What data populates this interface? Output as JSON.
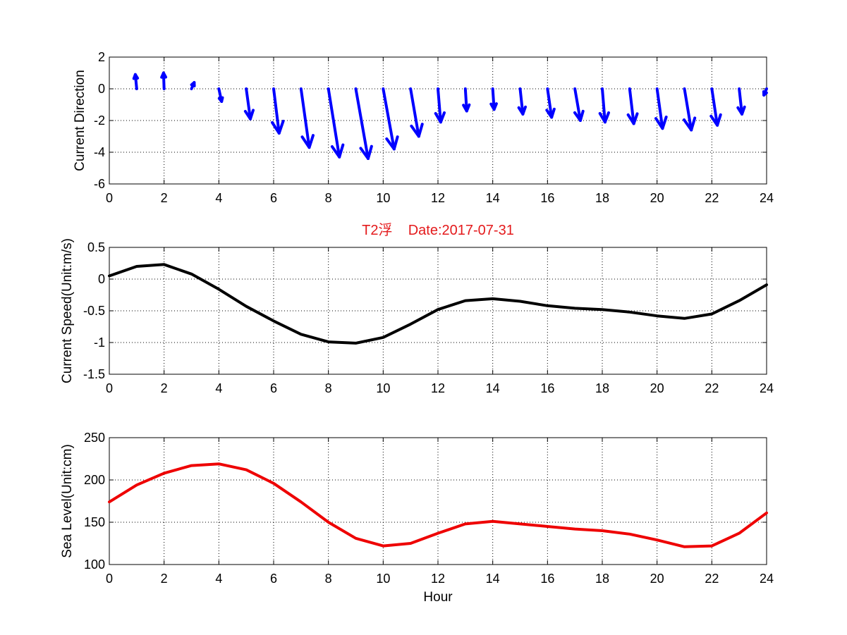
{
  "chart_data": [
    {
      "type": "quiver",
      "ylabel": "Current Direction",
      "xlim": [
        0,
        24
      ],
      "ylim": [
        -6,
        2
      ],
      "xticks": [
        0,
        2,
        4,
        6,
        8,
        10,
        12,
        14,
        16,
        18,
        20,
        22,
        24
      ],
      "yticks": [
        -6,
        -4,
        -2,
        0,
        2
      ],
      "grid": true,
      "color": "#0000ff",
      "x": [
        1,
        2,
        3,
        4,
        5,
        6,
        7,
        8,
        9,
        10,
        11,
        12,
        13,
        14,
        15,
        16,
        17,
        18,
        19,
        20,
        21,
        22,
        23,
        24
      ],
      "u": [
        -0.05,
        -0.02,
        0.1,
        0.1,
        0.15,
        0.2,
        0.3,
        0.4,
        0.45,
        0.4,
        0.3,
        0.1,
        0.05,
        0.05,
        0.1,
        0.15,
        0.2,
        0.1,
        0.15,
        0.2,
        0.25,
        0.2,
        0.1,
        -0.1
      ],
      "v": [
        0.9,
        1.0,
        0.4,
        -0.8,
        -1.9,
        -2.8,
        -3.7,
        -4.3,
        -4.4,
        -3.8,
        -3.0,
        -2.1,
        -1.4,
        -1.3,
        -1.6,
        -1.8,
        -2.0,
        -2.1,
        -2.2,
        -2.5,
        -2.6,
        -2.3,
        -1.6,
        -0.4
      ]
    },
    {
      "type": "line",
      "title": "T2浮    Date:2017-07-31",
      "ylabel": "Current Speed(Unit:m/s)",
      "xlim": [
        0,
        24
      ],
      "ylim": [
        -1.5,
        0.5
      ],
      "xticks": [
        0,
        2,
        4,
        6,
        8,
        10,
        12,
        14,
        16,
        18,
        20,
        22,
        24
      ],
      "yticks": [
        -1.5,
        -1,
        -0.5,
        0,
        0.5
      ],
      "ytick_labels": [
        "-1.5",
        "-1",
        "-0.5",
        "0",
        "0.5"
      ],
      "grid": true,
      "color": "#000000",
      "x": [
        0,
        1,
        2,
        3,
        4,
        5,
        6,
        7,
        8,
        9,
        10,
        11,
        12,
        13,
        14,
        15,
        16,
        17,
        18,
        19,
        20,
        21,
        22,
        23,
        24
      ],
      "y": [
        0.05,
        0.2,
        0.23,
        0.08,
        -0.16,
        -0.43,
        -0.66,
        -0.87,
        -0.99,
        -1.01,
        -0.92,
        -0.71,
        -0.48,
        -0.34,
        -0.31,
        -0.35,
        -0.42,
        -0.46,
        -0.48,
        -0.52,
        -0.58,
        -0.62,
        -0.55,
        -0.34,
        -0.09
      ]
    },
    {
      "type": "line",
      "xlabel": "Hour",
      "ylabel": "Sea Level(Unit:cm)",
      "xlim": [
        0,
        24
      ],
      "ylim": [
        100,
        250
      ],
      "xticks": [
        0,
        2,
        4,
        6,
        8,
        10,
        12,
        14,
        16,
        18,
        20,
        22,
        24
      ],
      "yticks": [
        100,
        150,
        200,
        250
      ],
      "grid": true,
      "color": "#ee0000",
      "x": [
        0,
        1,
        2,
        3,
        4,
        5,
        6,
        7,
        8,
        9,
        10,
        11,
        12,
        13,
        14,
        15,
        16,
        17,
        18,
        19,
        20,
        21,
        22,
        23,
        24
      ],
      "y": [
        174,
        194,
        208,
        217,
        219,
        212,
        196,
        174,
        150,
        131,
        122,
        125,
        137,
        148,
        151,
        148,
        145,
        142,
        140,
        136,
        129,
        121,
        122,
        137,
        161
      ]
    }
  ]
}
